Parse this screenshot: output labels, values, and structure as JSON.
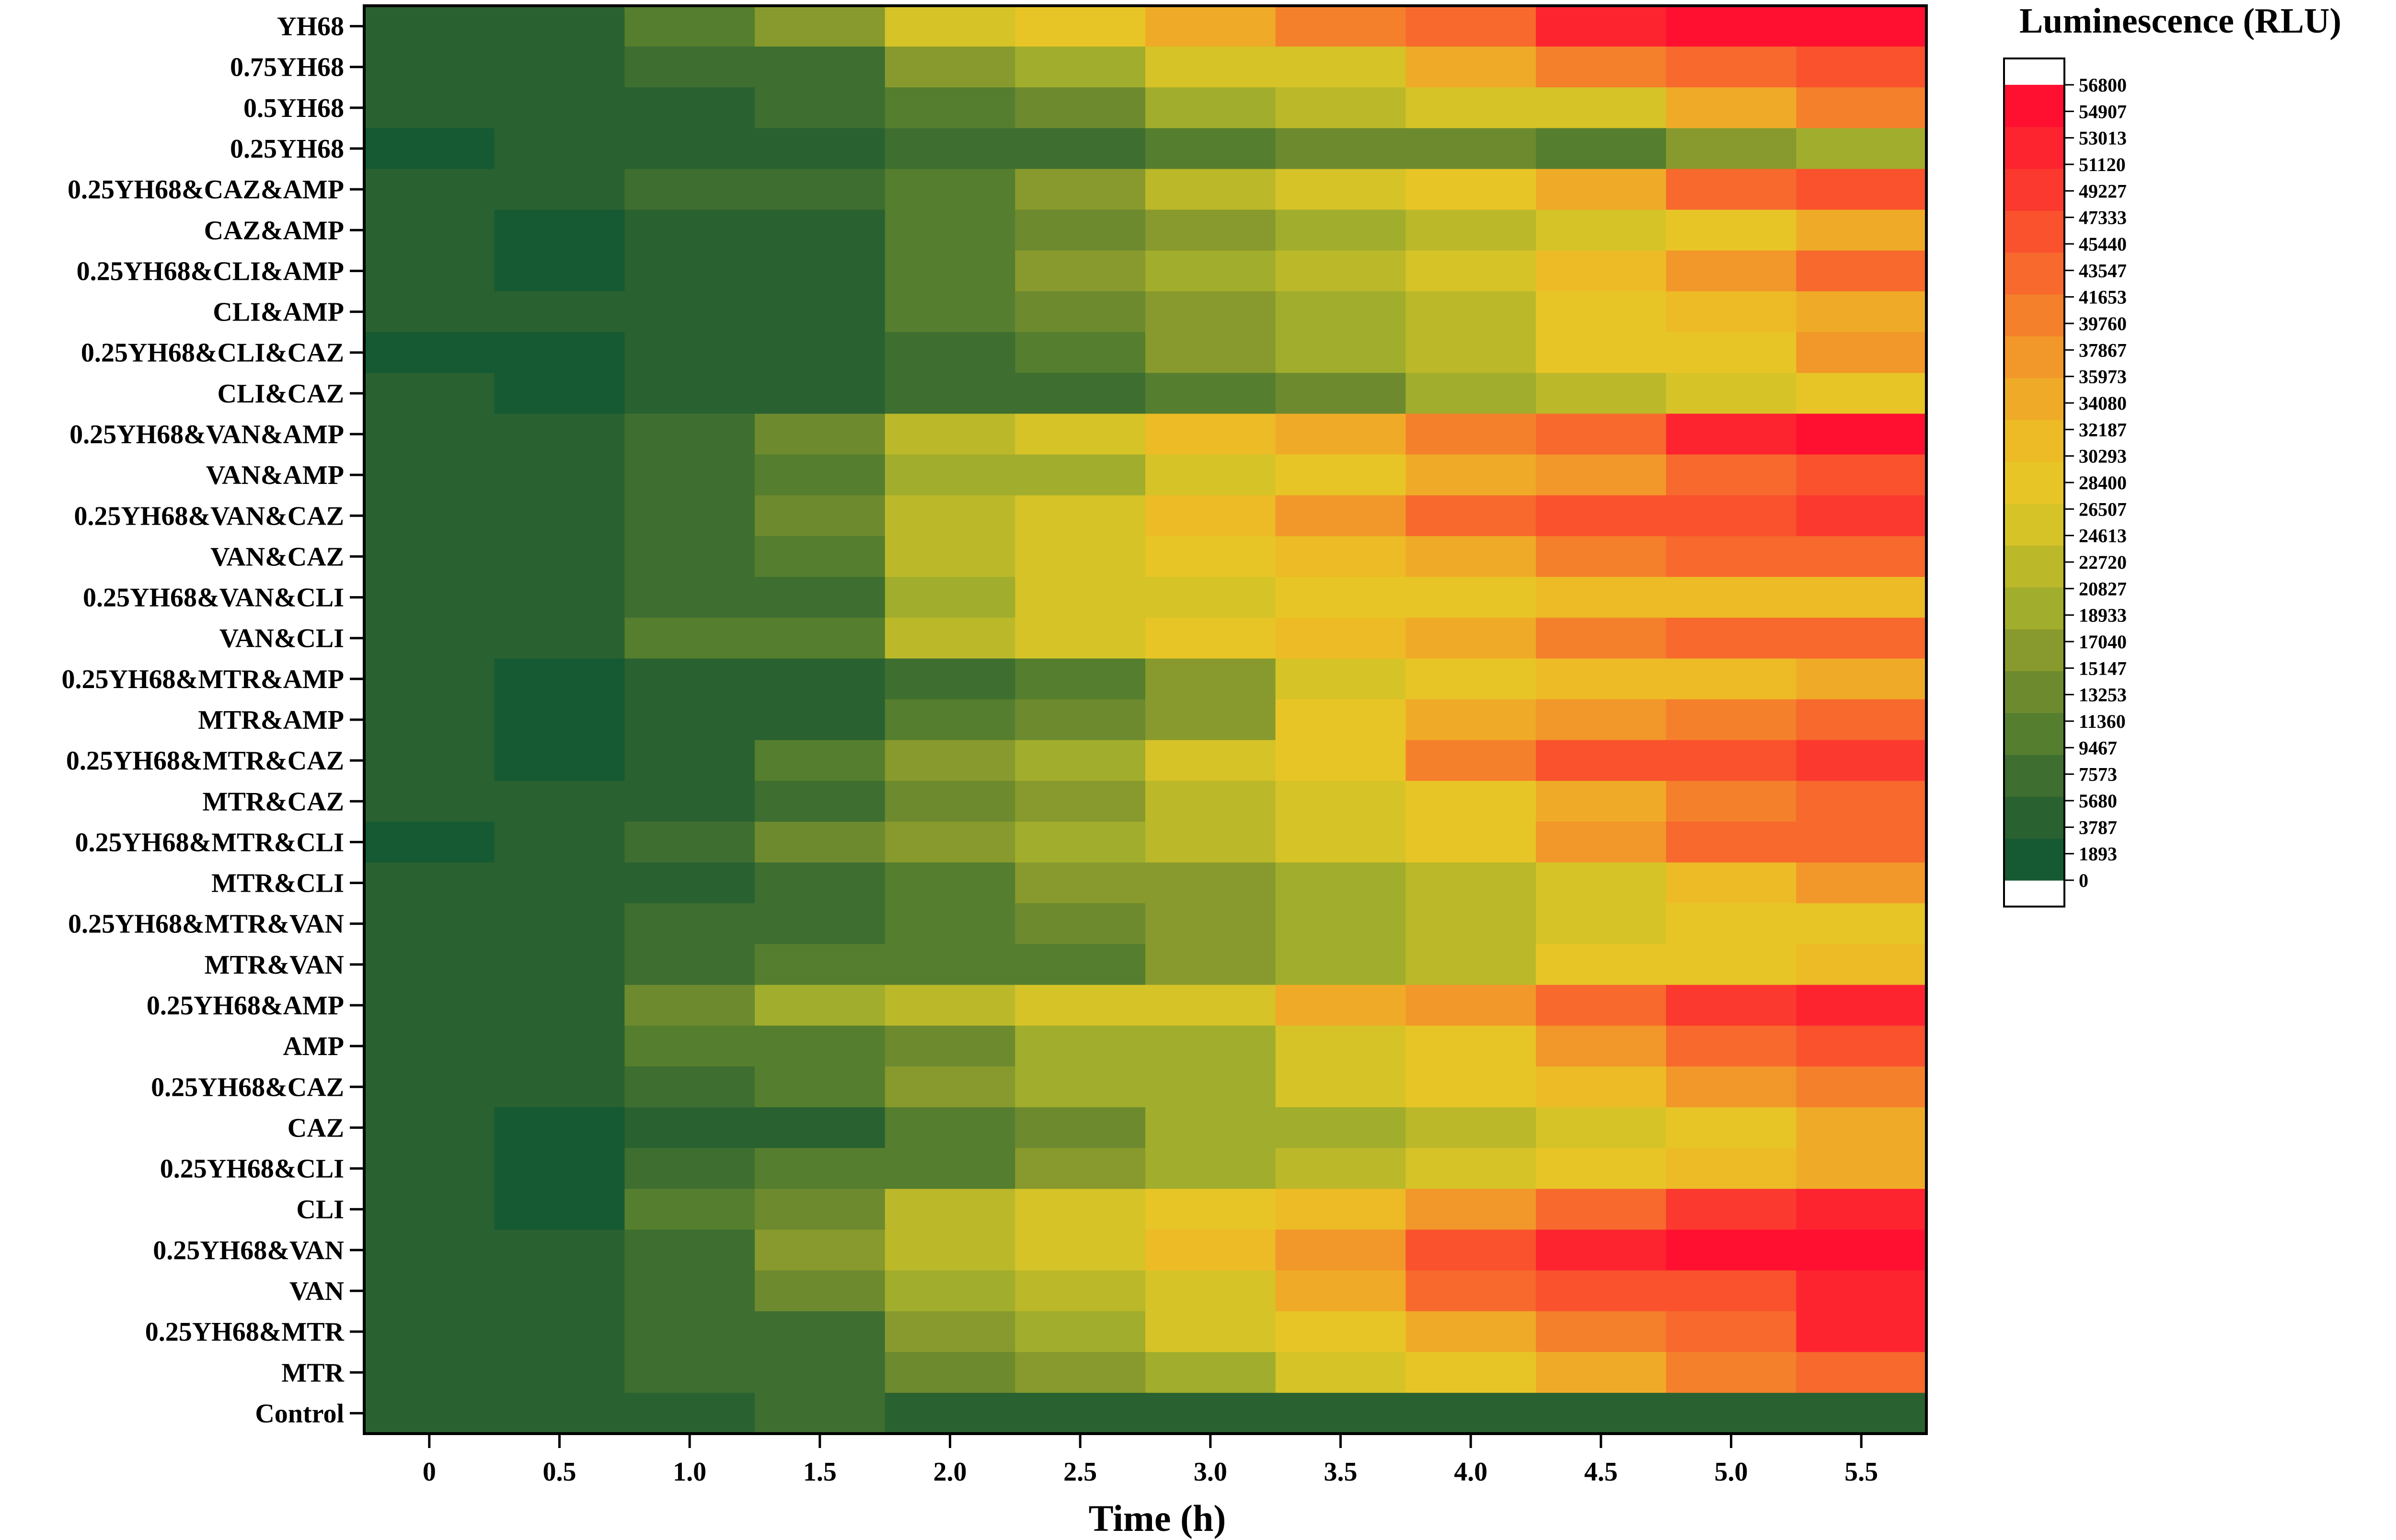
{
  "chart_data": {
    "type": "heatmap",
    "xlabel": "Time (h)",
    "x": [
      "0",
      "0.5",
      "1.0",
      "1.5",
      "2.0",
      "2.5",
      "3.0",
      "3.5",
      "4.0",
      "4.5",
      "5.0",
      "5.5"
    ],
    "y": [
      "YH68",
      "0.75YH68",
      "0.5YH68",
      "0.25YH68",
      "0.25YH68&CAZ&AMP",
      "CAZ&AMP",
      "0.25YH68&CLI&AMP",
      "CLI&AMP",
      "0.25YH68&CLI&CAZ",
      "CLI&CAZ",
      "0.25YH68&VAN&AMP",
      "VAN&AMP",
      "0.25YH68&VAN&CAZ",
      "VAN&CAZ",
      "0.25YH68&VAN&CLI",
      "VAN&CLI",
      "0.25YH68&MTR&AMP",
      "MTR&AMP",
      "0.25YH68&MTR&CAZ",
      "MTR&CAZ",
      "0.25YH68&MTR&CLI",
      "MTR&CLI",
      "0.25YH68&MTR&VAN",
      "MTR&VAN",
      "0.25YH68&AMP",
      "AMP",
      "0.25YH68&CAZ",
      "CAZ",
      "0.25YH68&CLI",
      "CLI",
      "0.25YH68&VAN",
      "VAN",
      "0.25YH68&MTR",
      "MTR",
      "Control"
    ],
    "values": [
      [
        4800,
        4800,
        10000,
        17500,
        25000,
        27000,
        34500,
        40000,
        44000,
        52000,
        55500,
        56000
      ],
      [
        4500,
        4500,
        6500,
        8500,
        17000,
        20000,
        25000,
        26000,
        33000,
        40500,
        44000,
        47500
      ],
      [
        4300,
        4300,
        4500,
        6500,
        11000,
        14000,
        18000,
        22500,
        25500,
        26500,
        35000,
        40500
      ],
      [
        2500,
        4300,
        4300,
        4500,
        6500,
        8500,
        10500,
        12500,
        14000,
        11000,
        15500,
        18000
      ],
      [
        4500,
        4500,
        6500,
        8000,
        11000,
        16000,
        22500,
        25000,
        27500,
        35000,
        42000,
        47500
      ],
      [
        4500,
        2500,
        5500,
        5500,
        11000,
        14000,
        16500,
        19500,
        23500,
        25500,
        28500,
        35500
      ],
      [
        4500,
        2500,
        5500,
        5500,
        11000,
        15500,
        18000,
        22000,
        25500,
        32500,
        36000,
        42000
      ],
      [
        4500,
        4500,
        5500,
        5500,
        11000,
        14000,
        17000,
        20500,
        23500,
        28000,
        30000,
        35000
      ],
      [
        2500,
        2500,
        4500,
        5500,
        8500,
        10000,
        16000,
        19000,
        23000,
        27000,
        29500,
        37500
      ],
      [
        4500,
        2500,
        3800,
        3800,
        6500,
        6500,
        11000,
        14000,
        18000,
        23500,
        25500,
        29000
      ],
      [
        4500,
        4500,
        6500,
        12500,
        23000,
        26500,
        30000,
        33500,
        40500,
        44000,
        52000,
        55500
      ],
      [
        4500,
        4500,
        6500,
        9500,
        18000,
        19000,
        26000,
        28500,
        33000,
        38500,
        43500,
        45500
      ],
      [
        4500,
        4500,
        6500,
        12000,
        23500,
        26000,
        32500,
        38500,
        43000,
        46500,
        45000,
        49000
      ],
      [
        4500,
        4500,
        6500,
        9500,
        21000,
        26000,
        28000,
        30500,
        33000,
        40000,
        43000,
        44000
      ],
      [
        4500,
        4500,
        7500,
        7500,
        18000,
        24000,
        26500,
        27000,
        29500,
        31000,
        30000,
        30500
      ],
      [
        4500,
        4500,
        9500,
        9500,
        22000,
        26500,
        27500,
        31500,
        34500,
        40000,
        42000,
        42000
      ],
      [
        4500,
        2500,
        3800,
        3800,
        7000,
        10000,
        15500,
        26000,
        28000,
        30500,
        32000,
        33500
      ],
      [
        4500,
        2500,
        3800,
        5500,
        9500,
        13500,
        17000,
        29000,
        34000,
        38000,
        39000,
        43500
      ],
      [
        4500,
        2500,
        5500,
        9500,
        16000,
        19500,
        26000,
        28000,
        39500,
        46500,
        47500,
        50000
      ],
      [
        4500,
        4500,
        5500,
        7500,
        12000,
        17000,
        21000,
        24000,
        28500,
        35000,
        40000,
        43500
      ],
      [
        2500,
        4500,
        6500,
        12000,
        15500,
        18500,
        21000,
        25000,
        27000,
        37000,
        43500,
        44000
      ],
      [
        4500,
        4500,
        5500,
        7000,
        9500,
        15000,
        17500,
        20500,
        23500,
        26000,
        30000,
        38500
      ],
      [
        4500,
        3300,
        7000,
        7000,
        9500,
        13500,
        16500,
        19000,
        21000,
        26500,
        27000,
        27500
      ],
      [
        4500,
        4500,
        7000,
        9000,
        11000,
        11000,
        16000,
        19500,
        23500,
        28000,
        29500,
        31500
      ],
      [
        4500,
        4500,
        13000,
        18000,
        21500,
        24000,
        25000,
        33500,
        36500,
        44000,
        49500,
        51000
      ],
      [
        4500,
        4500,
        10000,
        10000,
        12500,
        18000,
        19000,
        26000,
        27500,
        37500,
        42000,
        47500
      ],
      [
        4500,
        4500,
        7000,
        11000,
        15000,
        18500,
        20500,
        25000,
        28000,
        31500,
        36500,
        40000
      ],
      [
        4500,
        2500,
        5500,
        5500,
        11000,
        14500,
        18000,
        20500,
        22000,
        24500,
        29500,
        33500
      ],
      [
        4500,
        2500,
        7000,
        9000,
        11500,
        16000,
        20000,
        23000,
        26500,
        27500,
        31000,
        33500
      ],
      [
        4500,
        2500,
        10000,
        12500,
        22500,
        26500,
        28000,
        30500,
        36000,
        44000,
        48000,
        51500
      ],
      [
        4500,
        4500,
        7000,
        15500,
        22500,
        26500,
        30000,
        38000,
        46000,
        52500,
        56500,
        56500
      ],
      [
        4500,
        3300,
        7000,
        13500,
        18500,
        21500,
        26000,
        34000,
        43000,
        45000,
        47000,
        51000
      ],
      [
        4500,
        4500,
        6000,
        7500,
        15500,
        18500,
        26000,
        27500,
        34500,
        41000,
        44000,
        51500
      ],
      [
        3300,
        3300,
        6000,
        7500,
        12000,
        15500,
        19000,
        25500,
        28500,
        33500,
        39500,
        43000
      ],
      [
        5500,
        3800,
        3800,
        6500,
        3800,
        3800,
        3800,
        3800,
        3800,
        3800,
        3800,
        3800
      ]
    ],
    "colorbar": {
      "title": "Luminescence (RLU)",
      "ticks": [
        "56800",
        "54907",
        "53013",
        "51120",
        "49227",
        "47333",
        "45440",
        "43547",
        "41653",
        "39760",
        "37867",
        "35973",
        "34080",
        "32187",
        "30293",
        "28400",
        "26507",
        "24613",
        "22720",
        "20827",
        "18933",
        "17040",
        "15147",
        "13253",
        "11360",
        "9467",
        "7573",
        "5680",
        "3787",
        "1893",
        "0"
      ],
      "range": [
        0,
        56800
      ],
      "colors": [
        "#155a32",
        "#2a6131",
        "#3e6e30",
        "#557e2e",
        "#6d8a2f",
        "#889a2d",
        "#a1ad2c",
        "#bbb82a",
        "#d6c328",
        "#e8c526",
        "#ecbb26",
        "#efab27",
        "#f29729",
        "#f5802b",
        "#f7692d",
        "#f9522d",
        "#fb392e",
        "#fd2430",
        "#ff1030"
      ]
    }
  }
}
